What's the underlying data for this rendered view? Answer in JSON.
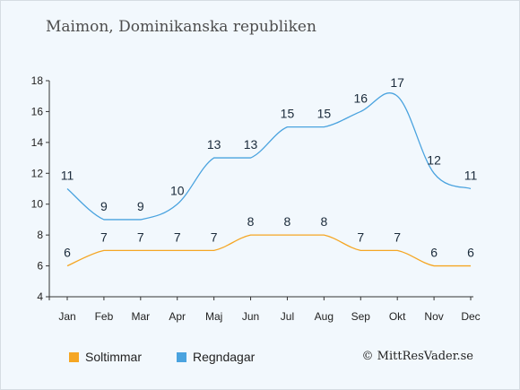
{
  "title": "Maimon, Dominikanska republiken",
  "credit": "© MittResVader.se",
  "colors": {
    "sun": "#f5a623",
    "rain": "#4aa3df"
  },
  "chart_data": {
    "type": "line",
    "categories": [
      "Jan",
      "Feb",
      "Mar",
      "Apr",
      "Maj",
      "Jun",
      "Jul",
      "Aug",
      "Sep",
      "Okt",
      "Nov",
      "Dec"
    ],
    "ylim": [
      4,
      18
    ],
    "yticks": [
      "4",
      "6",
      "8",
      "10",
      "12",
      "14",
      "16",
      "18"
    ],
    "grid": false,
    "legend_position": "bottom-left",
    "series": [
      {
        "name": "Soltimmar",
        "color": "#f5a623",
        "values": [
          6,
          7,
          7,
          7,
          7,
          8,
          8,
          8,
          7,
          7,
          6,
          6
        ]
      },
      {
        "name": "Regndagar",
        "color": "#4aa3df",
        "values": [
          11,
          9,
          9,
          10,
          13,
          13,
          15,
          15,
          16,
          17,
          12,
          11
        ]
      }
    ]
  }
}
